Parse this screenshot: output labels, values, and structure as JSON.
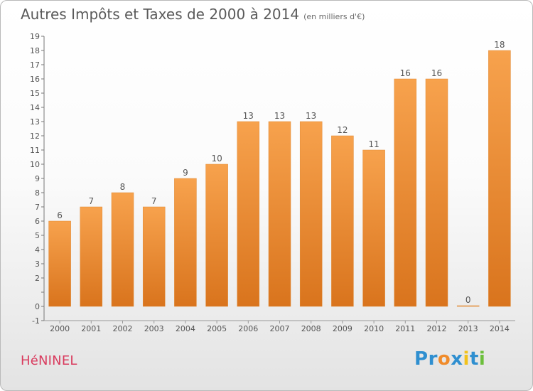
{
  "title": "Autres Impôts et Taxes de 2000 à 2014",
  "title_unit": "(en milliers d'€)",
  "commune": "HéNINEL",
  "logo": {
    "text": "Proxiti",
    "letters": [
      {
        "ch": "P",
        "color": "#2f8fd0"
      },
      {
        "ch": "r",
        "color": "#2f8fd0"
      },
      {
        "ch": "o",
        "color": "#f08b2a"
      },
      {
        "ch": "x",
        "color": "#2f8fd0"
      },
      {
        "ch": "i",
        "color": "#f2c21b"
      },
      {
        "ch": "t",
        "color": "#2f8fd0"
      },
      {
        "ch": "i",
        "color": "#6cbf3c"
      }
    ]
  },
  "chart_data": {
    "type": "bar",
    "categories": [
      "2000",
      "2001",
      "2002",
      "2003",
      "2004",
      "2005",
      "2006",
      "2007",
      "2008",
      "2009",
      "2010",
      "2011",
      "2012",
      "2013",
      "2014"
    ],
    "values": [
      6,
      7,
      8,
      7,
      9,
      10,
      13,
      13,
      13,
      12,
      11,
      16,
      16,
      0,
      18
    ],
    "data_labels": [
      "6",
      "7",
      "8",
      "7",
      "9",
      "10",
      "13",
      "13",
      "13",
      "12",
      "11",
      "16",
      "16",
      "0",
      "18"
    ],
    "yticks": [
      -1,
      0,
      1,
      2,
      3,
      4,
      5,
      6,
      7,
      8,
      9,
      10,
      11,
      12,
      13,
      14,
      15,
      16,
      17,
      18,
      19
    ],
    "ytick_labels": [
      "-1",
      "0",
      "",
      "2",
      "3",
      "4",
      "5",
      "6",
      "7",
      "8",
      "9",
      "10",
      "11",
      "12",
      "13",
      "14",
      "15",
      "16",
      "17",
      "18",
      "19"
    ],
    "ylim": [
      -1,
      19
    ],
    "grid": false,
    "bar_color_light": "#f7a24d",
    "bar_color_dark": "#d9741d"
  }
}
